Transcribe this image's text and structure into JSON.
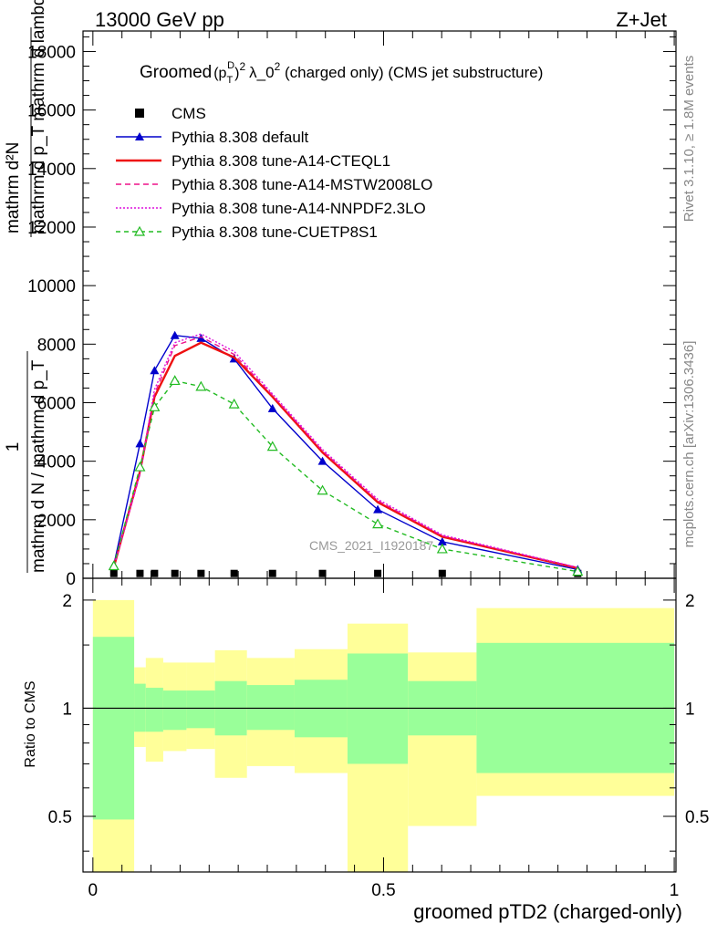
{
  "header": {
    "left": "13000 GeV pp",
    "right": "Z+Jet"
  },
  "side_labels": {
    "rivet": "Rivet 3.1.10, ≥ 1.8M events",
    "mcplots": "mcplots.cern.ch [arXiv:1306.3436]"
  },
  "watermark": "CMS_2021_I1920187",
  "colors": {
    "cms": "#000000",
    "default": "#0000cc",
    "cteql1": "#ee1111",
    "mstw": "#ee1188",
    "nnpdf": "#dd11dd",
    "cuetp8s1": "#22bb22",
    "band_yellow": "#ffff99",
    "band_green": "#99ff99"
  },
  "chart_data": [
    {
      "type": "line",
      "panel": "main",
      "title_parts": {
        "prefix": "Groomed",
        "p": "p",
        "sub_T": "T",
        "sup_D": "D",
        "sup_2": "2",
        "lambda": "λ_0",
        "rest": "  (charged only) (CMS jet substructure)"
      },
      "ylabel_lines": [
        "mathrm d",
        "N",
        "mathrm d",
        "p",
        "T",
        "mathrm d",
        "mathrm d",
        "lambda",
        "1",
        "mathrm d N / mathrm d",
        "p",
        "T"
      ],
      "ylabel_top": "mathrm d²N",
      "ylabel_mid": "mathrm d p_T mathrm d lambda",
      "ylabel_one": "1",
      "ylabel_bot": "mathrm d N / mathrm d p_T",
      "y_ticks": [
        "0",
        "2000",
        "4000",
        "6000",
        "8000",
        "10000",
        "12000",
        "14000",
        "16000",
        "18000"
      ],
      "y_tick_values": [
        0,
        2000,
        4000,
        6000,
        8000,
        10000,
        12000,
        14000,
        16000,
        18000
      ],
      "ylim": [
        0,
        18700
      ],
      "xlim": [
        -0.017,
        1.003
      ],
      "grid": false,
      "legend_position": "top-left",
      "series": [
        {
          "name": "CMS",
          "key": "cms",
          "style": "square",
          "x": [
            0.036,
            0.081,
            0.106,
            0.141,
            0.186,
            0.243,
            0.309,
            0.395,
            0.49,
            0.601,
            0.834
          ],
          "y": [
            40,
            40,
            40,
            40,
            40,
            40,
            40,
            40,
            40,
            40,
            40
          ]
        },
        {
          "name": "Pythia 8.308 default",
          "key": "default",
          "style": "solid-triangle",
          "x": [
            0.036,
            0.081,
            0.106,
            0.141,
            0.186,
            0.243,
            0.309,
            0.395,
            0.49,
            0.601,
            0.834
          ],
          "y": [
            450,
            4600,
            7100,
            8300,
            8200,
            7500,
            5800,
            4000,
            2350,
            1250,
            300
          ]
        },
        {
          "name": "Pythia 8.308 tune-A14-CTEQL1",
          "key": "cteql1",
          "style": "solid",
          "x": [
            0.036,
            0.081,
            0.106,
            0.141,
            0.186,
            0.243,
            0.309,
            0.395,
            0.49,
            0.601,
            0.834
          ],
          "y": [
            380,
            3650,
            6200,
            7600,
            8050,
            7550,
            6200,
            4300,
            2600,
            1420,
            350
          ]
        },
        {
          "name": "Pythia 8.308 tune-A14-MSTW2008LO",
          "key": "mstw",
          "style": "dashed",
          "x": [
            0.036,
            0.081,
            0.106,
            0.141,
            0.186,
            0.243,
            0.309,
            0.395,
            0.49,
            0.601,
            0.834
          ],
          "y": [
            380,
            3550,
            6300,
            7950,
            8250,
            7650,
            6250,
            4350,
            2650,
            1450,
            360
          ]
        },
        {
          "name": "Pythia 8.308 tune-A14-NNPDF2.3LO",
          "key": "nnpdf",
          "style": "dotted",
          "x": [
            0.036,
            0.081,
            0.106,
            0.141,
            0.186,
            0.243,
            0.309,
            0.395,
            0.49,
            0.601,
            0.834
          ],
          "y": [
            380,
            3600,
            6450,
            8050,
            8350,
            7750,
            6300,
            4400,
            2700,
            1480,
            370
          ]
        },
        {
          "name": "Pythia 8.308 tune-CUETP8S1",
          "key": "cuetp8s1",
          "style": "dashed-open-triangle",
          "x": [
            0.036,
            0.081,
            0.106,
            0.141,
            0.186,
            0.243,
            0.309,
            0.395,
            0.49,
            0.601,
            0.834
          ],
          "y": [
            420,
            3800,
            5850,
            6750,
            6550,
            5950,
            4500,
            3000,
            1850,
            1000,
            230
          ]
        }
      ]
    },
    {
      "type": "area",
      "panel": "ratio",
      "ylabel": "Ratio to CMS",
      "y_ticks": [
        "0.5",
        "1",
        "2"
      ],
      "y_tick_values": [
        0.5,
        1,
        2
      ],
      "x_ticks": [
        "0",
        "0.5",
        "1"
      ],
      "x_tick_values": [
        0,
        0.5,
        1
      ],
      "xlabel": "groomed pTD2 (charged-only)",
      "scale": "log",
      "ylim": [
        0.35,
        2.3
      ],
      "xlim": [
        -0.017,
        1.003
      ],
      "reference_line": 1,
      "bins": [
        {
          "x0": 0.0,
          "x1": 0.071,
          "stat_low": 0.49,
          "stat_high": 1.58,
          "tot_low": 0.33,
          "tot_high": 2.0
        },
        {
          "x0": 0.071,
          "x1": 0.091,
          "stat_low": 0.86,
          "stat_high": 1.17,
          "tot_low": 0.78,
          "tot_high": 1.3
        },
        {
          "x0": 0.091,
          "x1": 0.121,
          "stat_low": 0.86,
          "stat_high": 1.14,
          "tot_low": 0.71,
          "tot_high": 1.38
        },
        {
          "x0": 0.121,
          "x1": 0.161,
          "stat_low": 0.87,
          "stat_high": 1.12,
          "tot_low": 0.76,
          "tot_high": 1.34
        },
        {
          "x0": 0.161,
          "x1": 0.21,
          "stat_low": 0.88,
          "stat_high": 1.12,
          "tot_low": 0.77,
          "tot_high": 1.34
        },
        {
          "x0": 0.21,
          "x1": 0.265,
          "stat_low": 0.84,
          "stat_high": 1.19,
          "tot_low": 0.64,
          "tot_high": 1.45
        },
        {
          "x0": 0.265,
          "x1": 0.347,
          "stat_low": 0.87,
          "stat_high": 1.16,
          "tot_low": 0.69,
          "tot_high": 1.38
        },
        {
          "x0": 0.347,
          "x1": 0.438,
          "stat_low": 0.83,
          "stat_high": 1.2,
          "tot_low": 0.66,
          "tot_high": 1.46
        },
        {
          "x0": 0.438,
          "x1": 0.542,
          "stat_low": 0.7,
          "stat_high": 1.42,
          "tot_low": 0.35,
          "tot_high": 1.72
        },
        {
          "x0": 0.542,
          "x1": 0.66,
          "stat_low": 0.84,
          "stat_high": 1.19,
          "tot_low": 0.47,
          "tot_high": 1.43
        },
        {
          "x0": 0.66,
          "x1": 1.0,
          "stat_low": 0.66,
          "stat_high": 1.52,
          "tot_low": 0.57,
          "tot_high": 1.9
        }
      ]
    }
  ]
}
